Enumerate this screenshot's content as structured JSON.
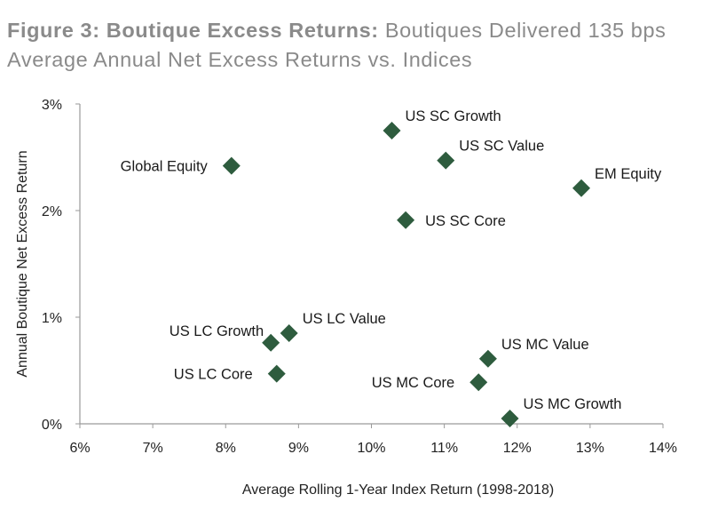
{
  "title": {
    "bold": "Figure 3: Boutique Excess Returns:",
    "rest": " Boutiques Delivered 135 bps Average Annual Net Excess Returns vs. Indices"
  },
  "chart_data": {
    "type": "scatter",
    "title": "Figure 3: Boutique Excess Returns: Boutiques Delivered 135 bps Average Annual Net Excess Returns vs. Indices",
    "xlabel": "Average Rolling 1-Year Index Return (1998-2018)",
    "ylabel": "Annual Boutique Net Excess Return",
    "xlim": [
      6,
      14
    ],
    "ylim": [
      0,
      3
    ],
    "xticks": [
      "6%",
      "7%",
      "8%",
      "9%",
      "10%",
      "11%",
      "12%",
      "13%",
      "14%"
    ],
    "yticks": [
      "0%",
      "1%",
      "2%",
      "3%"
    ],
    "grid": false,
    "marker": "diamond",
    "marker_color": "#2e5c3e",
    "points": [
      {
        "label": "US SC Growth",
        "x": 10.28,
        "y": 2.75,
        "label_pos": "upper-right"
      },
      {
        "label": "Global Equity",
        "x": 8.08,
        "y": 2.42,
        "label_pos": "left"
      },
      {
        "label": "US SC Value",
        "x": 11.02,
        "y": 2.47,
        "label_pos": "upper-right"
      },
      {
        "label": "EM Equity",
        "x": 12.88,
        "y": 2.21,
        "label_pos": "upper-right"
      },
      {
        "label": "US SC Core",
        "x": 10.47,
        "y": 1.91,
        "label_pos": "right"
      },
      {
        "label": "US LC Growth",
        "x": 8.62,
        "y": 0.76,
        "label_pos": "upper-left"
      },
      {
        "label": "US LC Value",
        "x": 8.87,
        "y": 0.85,
        "label_pos": "upper-right"
      },
      {
        "label": "US LC Core",
        "x": 8.7,
        "y": 0.47,
        "label_pos": "left"
      },
      {
        "label": "US MC Value",
        "x": 11.6,
        "y": 0.61,
        "label_pos": "upper-right"
      },
      {
        "label": "US MC Core",
        "x": 11.47,
        "y": 0.39,
        "label_pos": "left"
      },
      {
        "label": "US MC Growth",
        "x": 11.9,
        "y": 0.05,
        "label_pos": "upper-right"
      }
    ]
  }
}
